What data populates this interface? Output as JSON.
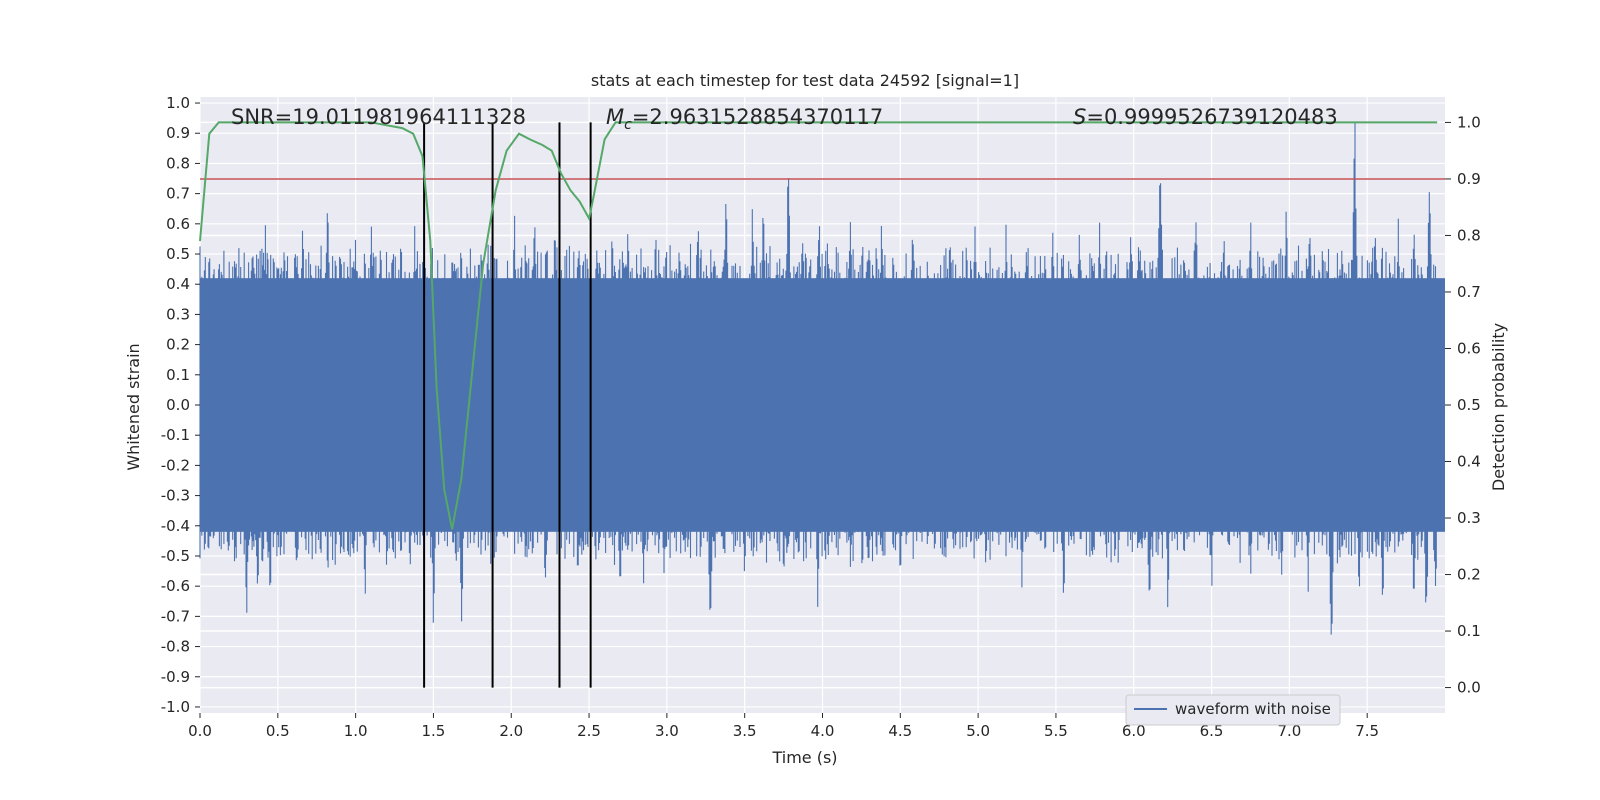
{
  "chart_data": {
    "type": "line",
    "title": "stats at each timestep for test data 24592 [signal=1]",
    "xlabel": "Time (s)",
    "ylabel": "Whitened strain",
    "y2label": "Detection probability",
    "xlim": [
      0.0,
      8.0
    ],
    "ylim": [
      -1.02,
      1.02
    ],
    "y2lim": [
      -0.045,
      1.045
    ],
    "xticks": [
      "0.0",
      "0.5",
      "1.0",
      "1.5",
      "2.0",
      "2.5",
      "3.0",
      "3.5",
      "4.0",
      "4.5",
      "5.0",
      "5.5",
      "6.0",
      "6.5",
      "7.0",
      "7.5"
    ],
    "yticks": [
      "1.0",
      "0.9",
      "0.8",
      "0.7",
      "0.6",
      "0.5",
      "0.4",
      "0.3",
      "0.2",
      "0.1",
      "0.0",
      "-0.1",
      "-0.2",
      "-0.3",
      "-0.4",
      "-0.5",
      "-0.6",
      "-0.7",
      "-0.8",
      "-0.9",
      "-1.0"
    ],
    "y2ticks": [
      "1.0",
      "0.9",
      "0.8",
      "0.7",
      "0.6",
      "0.5",
      "0.4",
      "0.3",
      "0.2",
      "0.1",
      "0.0"
    ],
    "grid": true,
    "legend_position": "lower-right",
    "annotations": {
      "snr_label": "SNR=19.011981964111328",
      "mc_prefix": "M",
      "mc_sub": "c",
      "mc_value": "=2.9631528854370117",
      "s_prefix": "S",
      "s_value": "=0.9999526739120483"
    },
    "waveform": {
      "name": "waveform with noise",
      "color": "#4c72b0",
      "core_band": [
        -0.42,
        0.42
      ],
      "upper_peaks": [
        [
          0.06,
          0.57
        ],
        [
          0.12,
          0.5
        ],
        [
          0.25,
          0.55
        ],
        [
          0.42,
          0.6
        ],
        [
          0.56,
          0.58
        ],
        [
          0.66,
          0.63
        ],
        [
          0.82,
          0.69
        ],
        [
          0.9,
          0.6
        ],
        [
          1.0,
          0.62
        ],
        [
          1.1,
          0.63
        ],
        [
          1.16,
          0.59
        ],
        [
          1.38,
          0.6
        ],
        [
          1.62,
          0.58
        ],
        [
          1.85,
          0.63
        ],
        [
          2.02,
          0.69
        ],
        [
          2.15,
          0.66
        ],
        [
          2.28,
          0.63
        ],
        [
          2.55,
          0.58
        ],
        [
          2.65,
          0.63
        ],
        [
          2.75,
          0.61
        ],
        [
          2.93,
          0.6
        ],
        [
          3.08,
          0.61
        ],
        [
          3.2,
          0.64
        ],
        [
          3.38,
          0.74
        ],
        [
          3.55,
          0.68
        ],
        [
          3.62,
          0.71
        ],
        [
          3.78,
          0.84
        ],
        [
          3.87,
          0.61
        ],
        [
          3.98,
          0.68
        ],
        [
          4.18,
          0.7
        ],
        [
          4.38,
          0.66
        ],
        [
          4.58,
          0.68
        ],
        [
          4.82,
          0.63
        ],
        [
          4.98,
          0.65
        ],
        [
          5.18,
          0.63
        ],
        [
          5.32,
          0.56
        ],
        [
          5.48,
          0.63
        ],
        [
          5.65,
          0.63
        ],
        [
          5.78,
          0.64
        ],
        [
          5.98,
          0.63
        ],
        [
          6.17,
          0.83
        ],
        [
          6.4,
          0.68
        ],
        [
          6.58,
          0.66
        ],
        [
          6.75,
          0.65
        ],
        [
          6.98,
          0.69
        ],
        [
          7.13,
          0.68
        ],
        [
          7.25,
          0.55
        ],
        [
          7.42,
          1.0
        ],
        [
          7.55,
          0.61
        ],
        [
          7.7,
          0.65
        ],
        [
          7.8,
          0.67
        ],
        [
          7.9,
          0.83
        ]
      ],
      "lower_peaks": [
        [
          0.05,
          -0.52
        ],
        [
          0.18,
          -0.58
        ],
        [
          0.3,
          -0.78
        ],
        [
          0.37,
          -0.7
        ],
        [
          0.45,
          -0.72
        ],
        [
          0.72,
          -0.57
        ],
        [
          0.82,
          -0.63
        ],
        [
          1.06,
          -0.68
        ],
        [
          1.2,
          -0.58
        ],
        [
          1.35,
          -0.59
        ],
        [
          1.5,
          -0.78
        ],
        [
          1.68,
          -0.8
        ],
        [
          1.95,
          -0.52
        ],
        [
          2.22,
          -0.67
        ],
        [
          2.45,
          -0.56
        ],
        [
          2.7,
          -0.68
        ],
        [
          2.85,
          -0.63
        ],
        [
          2.98,
          -0.63
        ],
        [
          3.28,
          -0.82
        ],
        [
          3.5,
          -0.67
        ],
        [
          3.75,
          -0.63
        ],
        [
          3.97,
          -0.76
        ],
        [
          4.18,
          -0.62
        ],
        [
          4.32,
          -0.57
        ],
        [
          4.5,
          -0.68
        ],
        [
          4.72,
          -0.58
        ],
        [
          5.05,
          -0.62
        ],
        [
          5.28,
          -0.63
        ],
        [
          5.55,
          -0.69
        ],
        [
          5.88,
          -0.58
        ],
        [
          6.1,
          -0.75
        ],
        [
          6.22,
          -0.72
        ],
        [
          6.5,
          -0.65
        ],
        [
          6.75,
          -0.62
        ],
        [
          6.95,
          -0.62
        ],
        [
          7.12,
          -0.68
        ],
        [
          7.27,
          -0.92
        ],
        [
          7.45,
          -0.7
        ],
        [
          7.6,
          -0.72
        ],
        [
          7.8,
          -0.76
        ],
        [
          7.88,
          -0.79
        ],
        [
          7.94,
          -0.72
        ]
      ]
    },
    "detection_probability": {
      "color": "#55a868",
      "x": [
        0.0,
        0.06,
        0.12,
        0.3,
        0.6,
        0.9,
        1.0,
        1.1,
        1.2,
        1.3,
        1.37,
        1.43,
        1.48,
        1.52,
        1.57,
        1.62,
        1.68,
        1.75,
        1.82,
        1.9,
        1.97,
        2.05,
        2.12,
        2.2,
        2.26,
        2.32,
        2.38,
        2.44,
        2.5,
        2.53,
        2.6,
        2.67,
        2.75,
        3.5,
        4.2,
        5.5,
        6.5,
        7.5,
        7.95
      ],
      "y": [
        0.79,
        0.98,
        1.0,
        1.0,
        1.0,
        1.0,
        1.0,
        1.0,
        0.995,
        0.99,
        0.98,
        0.94,
        0.79,
        0.53,
        0.35,
        0.28,
        0.37,
        0.56,
        0.75,
        0.88,
        0.95,
        0.98,
        0.97,
        0.96,
        0.95,
        0.91,
        0.88,
        0.86,
        0.83,
        0.87,
        0.97,
        1.0,
        1.0,
        1.0,
        1.0,
        1.0,
        1.0,
        1.0,
        1.0
      ]
    },
    "threshold": {
      "value": 0.9,
      "color": "#c44e52"
    },
    "event_markers": {
      "x": [
        1.44,
        1.88,
        2.31,
        2.51
      ],
      "color": "#000000"
    }
  }
}
